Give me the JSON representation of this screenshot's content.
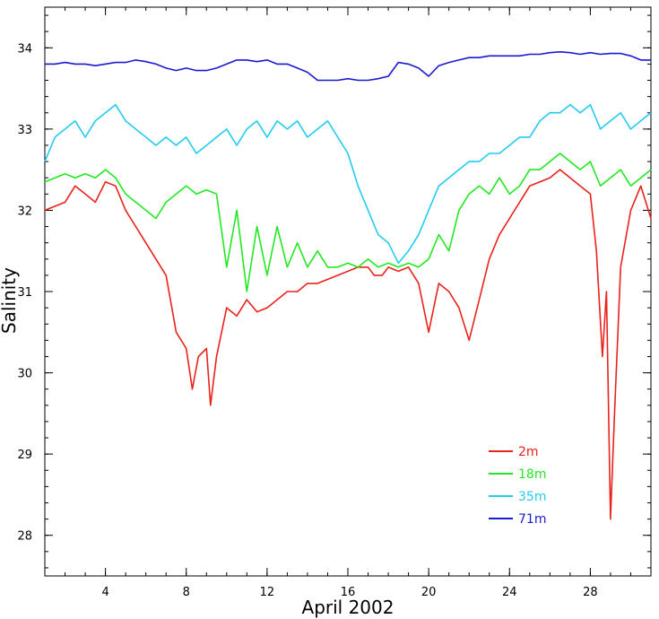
{
  "chart_data": {
    "type": "line",
    "title": "",
    "xlabel": "April 2002",
    "ylabel": "Salinity",
    "xlim": [
      1,
      31
    ],
    "ylim": [
      27.5,
      34.5
    ],
    "x_ticks": [
      4,
      8,
      12,
      16,
      20,
      24,
      28
    ],
    "y_ticks": [
      28,
      29,
      30,
      31,
      32,
      33,
      34
    ],
    "grid": false,
    "legend_position": "bottom-right",
    "series": [
      {
        "name": "2m",
        "color": "#e8221c",
        "x": [
          1,
          1.5,
          2,
          2.5,
          3,
          3.5,
          4,
          4.5,
          5,
          5.5,
          6,
          6.5,
          7,
          7.5,
          8,
          8.3,
          8.6,
          9,
          9.2,
          9.5,
          10,
          10.5,
          11,
          11.5,
          12,
          12.5,
          13,
          13.5,
          14,
          14.5,
          15,
          15.5,
          16,
          16.5,
          17,
          17.3,
          17.7,
          18,
          18.5,
          19,
          19.5,
          20,
          20.5,
          21,
          21.5,
          22,
          22.5,
          23,
          23.5,
          24,
          24.5,
          25,
          25.5,
          26,
          26.5,
          27,
          27.5,
          28,
          28.3,
          28.6,
          28.8,
          29,
          29.2,
          29.5,
          30,
          30.5,
          31
        ],
        "values": [
          32.0,
          32.05,
          32.1,
          32.3,
          32.2,
          32.1,
          32.35,
          32.3,
          32.0,
          31.8,
          31.6,
          31.4,
          31.2,
          30.5,
          30.3,
          29.8,
          30.2,
          30.3,
          29.6,
          30.2,
          30.8,
          30.7,
          30.9,
          30.75,
          30.8,
          30.9,
          31.0,
          31.0,
          31.1,
          31.1,
          31.15,
          31.2,
          31.25,
          31.3,
          31.3,
          31.2,
          31.2,
          31.3,
          31.25,
          31.3,
          31.1,
          30.5,
          31.1,
          31.0,
          30.8,
          30.4,
          30.9,
          31.4,
          31.7,
          31.9,
          32.1,
          32.3,
          32.35,
          32.4,
          32.5,
          32.4,
          32.3,
          32.2,
          31.5,
          30.2,
          31.0,
          28.2,
          29.5,
          31.3,
          32.0,
          32.3,
          31.9
        ]
      },
      {
        "name": "18m",
        "color": "#22e822",
        "x": [
          1,
          1.5,
          2,
          2.5,
          3,
          3.5,
          4,
          4.5,
          5,
          5.5,
          6,
          6.5,
          7,
          7.5,
          8,
          8.5,
          9,
          9.5,
          10,
          10.5,
          11,
          11.5,
          12,
          12.5,
          13,
          13.5,
          14,
          14.5,
          15,
          15.5,
          16,
          16.5,
          17,
          17.5,
          18,
          18.5,
          19,
          19.5,
          20,
          20.5,
          21,
          21.5,
          22,
          22.5,
          23,
          23.5,
          24,
          24.5,
          25,
          25.5,
          26,
          26.5,
          27,
          27.5,
          28,
          28.5,
          29,
          29.5,
          30,
          30.5,
          31
        ],
        "values": [
          32.35,
          32.4,
          32.45,
          32.4,
          32.45,
          32.4,
          32.5,
          32.4,
          32.2,
          32.1,
          32.0,
          31.9,
          32.1,
          32.2,
          32.3,
          32.2,
          32.25,
          32.2,
          31.3,
          32.0,
          31.0,
          31.8,
          31.2,
          31.8,
          31.3,
          31.6,
          31.3,
          31.5,
          31.3,
          31.3,
          31.35,
          31.3,
          31.4,
          31.3,
          31.35,
          31.3,
          31.35,
          31.3,
          31.4,
          31.7,
          31.5,
          32.0,
          32.2,
          32.3,
          32.2,
          32.4,
          32.2,
          32.3,
          32.5,
          32.5,
          32.6,
          32.7,
          32.6,
          32.5,
          32.6,
          32.3,
          32.4,
          32.5,
          32.3,
          32.4,
          32.5
        ]
      },
      {
        "name": "35m",
        "color": "#22ccf0",
        "x": [
          1,
          1.5,
          2,
          2.5,
          3,
          3.5,
          4,
          4.5,
          5,
          5.5,
          6,
          6.5,
          7,
          7.5,
          8,
          8.5,
          9,
          9.5,
          10,
          10.5,
          11,
          11.5,
          12,
          12.5,
          13,
          13.5,
          14,
          14.5,
          15,
          15.5,
          16,
          16.5,
          17,
          17.5,
          18,
          18.5,
          19,
          19.5,
          20,
          20.5,
          21,
          21.5,
          22,
          22.5,
          23,
          23.5,
          24,
          24.5,
          25,
          25.5,
          26,
          26.5,
          27,
          27.5,
          28,
          28.5,
          29,
          29.5,
          30,
          30.5,
          31
        ],
        "values": [
          32.6,
          32.9,
          33.0,
          33.1,
          32.9,
          33.1,
          33.2,
          33.3,
          33.1,
          33.0,
          32.9,
          32.8,
          32.9,
          32.8,
          32.9,
          32.7,
          32.8,
          32.9,
          33.0,
          32.8,
          33.0,
          33.1,
          32.9,
          33.1,
          33.0,
          33.1,
          32.9,
          33.0,
          33.1,
          32.9,
          32.7,
          32.3,
          32.0,
          31.7,
          31.6,
          31.35,
          31.5,
          31.7,
          32.0,
          32.3,
          32.4,
          32.5,
          32.6,
          32.6,
          32.7,
          32.7,
          32.8,
          32.9,
          32.9,
          33.1,
          33.2,
          33.2,
          33.3,
          33.2,
          33.3,
          33.0,
          33.1,
          33.2,
          33.0,
          33.1,
          33.2
        ]
      },
      {
        "name": "71m",
        "color": "#1a1ad0",
        "x": [
          1,
          1.5,
          2,
          2.5,
          3,
          3.5,
          4,
          4.5,
          5,
          5.5,
          6,
          6.5,
          7,
          7.5,
          8,
          8.5,
          9,
          9.5,
          10,
          10.5,
          11,
          11.5,
          12,
          12.5,
          13,
          13.5,
          14,
          14.5,
          15,
          15.5,
          16,
          16.5,
          17,
          17.5,
          18,
          18.5,
          19,
          19.5,
          20,
          20.5,
          21,
          21.5,
          22,
          22.5,
          23,
          23.5,
          24,
          24.5,
          25,
          25.5,
          26,
          26.5,
          27,
          27.5,
          28,
          28.5,
          29,
          29.5,
          30,
          30.5,
          31
        ],
        "values": [
          33.8,
          33.8,
          33.82,
          33.8,
          33.8,
          33.78,
          33.8,
          33.82,
          33.82,
          33.85,
          33.83,
          33.8,
          33.75,
          33.72,
          33.75,
          33.72,
          33.72,
          33.75,
          33.8,
          33.85,
          33.85,
          33.83,
          33.85,
          33.8,
          33.8,
          33.75,
          33.7,
          33.6,
          33.6,
          33.6,
          33.62,
          33.6,
          33.6,
          33.62,
          33.65,
          33.82,
          33.8,
          33.75,
          33.65,
          33.78,
          33.82,
          33.85,
          33.88,
          33.88,
          33.9,
          33.9,
          33.9,
          33.9,
          33.92,
          33.92,
          33.94,
          33.95,
          33.94,
          33.92,
          33.94,
          33.92,
          33.93,
          33.93,
          33.9,
          33.85,
          33.85
        ]
      }
    ]
  }
}
